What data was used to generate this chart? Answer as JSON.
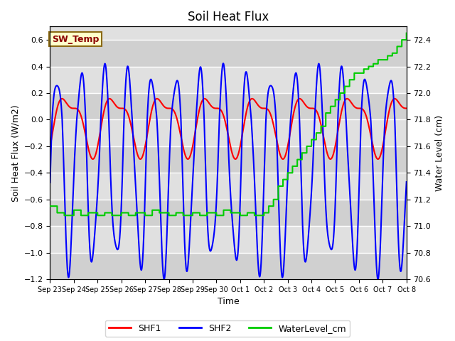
{
  "title": "Soil Heat Flux",
  "xlabel": "Time",
  "ylabel_left": "Soil Heat Flux (W/m2)",
  "ylabel_right": "Water Level (cm)",
  "ylim_left": [
    -1.2,
    0.7
  ],
  "ylim_right": [
    70.6,
    72.5
  ],
  "background_color": "#ffffff",
  "plot_bg_color": "#dcdcdc",
  "grid_color": "#ffffff",
  "x_tick_labels": [
    "Sep 23",
    "Sep 24",
    "Sep 25",
    "Sep 26",
    "Sep 27",
    "Sep 28",
    "Sep 29",
    "Sep 30",
    "Oct 1",
    "Oct 2",
    "Oct 3",
    "Oct 4",
    "Oct 5",
    "Oct 6",
    "Oct 7",
    "Oct 8"
  ],
  "annotation_text": "SW_Temp",
  "annotation_color": "#8b0000",
  "annotation_bg": "#ffffcc",
  "annotation_border": "#8b6914",
  "legend_items": [
    "SHF1",
    "SHF2",
    "WaterLevel_cm"
  ],
  "legend_colors": [
    "#ff0000",
    "#0000ff",
    "#00cc00"
  ],
  "title_fontsize": 12,
  "linewidth": 1.5
}
